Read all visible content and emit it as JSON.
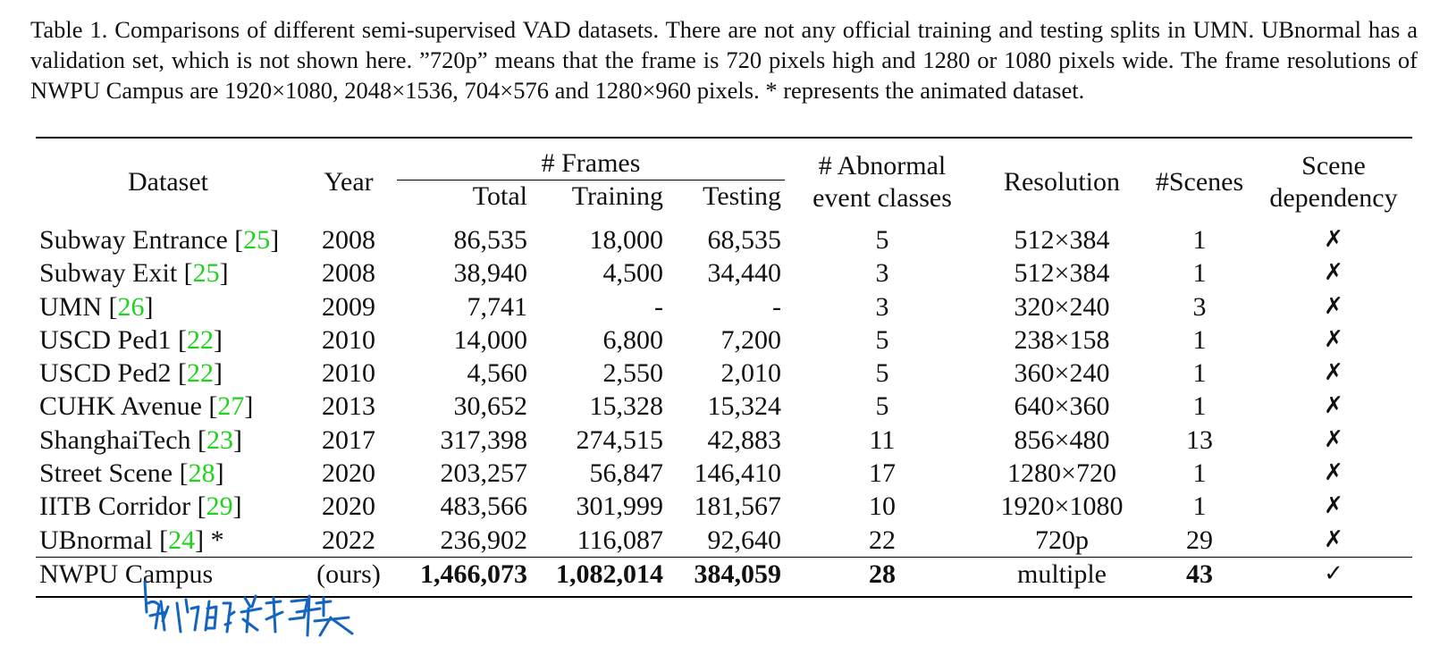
{
  "caption": "Table 1. Comparisons of different semi-supervised VAD datasets. There are not any official training and testing splits in UMN. UBnormal has a validation set, which is not shown here. ”720p” means that the frame is 720 pixels high and 1280 or 1080 pixels wide. The frame resolutions of NWPU Campus are 1920×1080, 2048×1536, 704×576 and 1280×960 pixels. * represents the animated dataset.",
  "headers": {
    "dataset": "Dataset",
    "year": "Year",
    "frames": "# Frames",
    "total": "Total",
    "training": "Training",
    "testing": "Testing",
    "abnormal_line1": "# Abnormal",
    "abnormal_line2": "event classes",
    "resolution": "Resolution",
    "scenes": "#Scenes",
    "scene_dep_line1": "Scene",
    "scene_dep_line2": "dependency"
  },
  "rows": [
    {
      "name": "Subway Entrance ",
      "cite": "25",
      "suffix": "]",
      "year": "2008",
      "total": "86,535",
      "training": "18,000",
      "testing": "68,535",
      "classes": "5",
      "resolution": "512×384",
      "scenes": "1",
      "dep": "✗"
    },
    {
      "name": "Subway Exit ",
      "cite": "25",
      "suffix": "]",
      "year": "2008",
      "total": "38,940",
      "training": "4,500",
      "testing": "34,440",
      "classes": "3",
      "resolution": "512×384",
      "scenes": "1",
      "dep": "✗"
    },
    {
      "name": "UMN ",
      "cite": "26",
      "suffix": "]",
      "year": "2009",
      "total": "7,741",
      "training": "-",
      "testing": "-",
      "classes": "3",
      "resolution": "320×240",
      "scenes": "3",
      "dep": "✗"
    },
    {
      "name": "USCD Ped1 ",
      "cite": "22",
      "suffix": "]",
      "year": "2010",
      "total": "14,000",
      "training": "6,800",
      "testing": "7,200",
      "classes": "5",
      "resolution": "238×158",
      "scenes": "1",
      "dep": "✗"
    },
    {
      "name": "USCD Ped2 ",
      "cite": "22",
      "suffix": "]",
      "year": "2010",
      "total": "4,560",
      "training": "2,550",
      "testing": "2,010",
      "classes": "5",
      "resolution": "360×240",
      "scenes": "1",
      "dep": "✗"
    },
    {
      "name": "CUHK Avenue ",
      "cite": "27",
      "suffix": "]",
      "year": "2013",
      "total": "30,652",
      "training": "15,328",
      "testing": "15,324",
      "classes": "5",
      "resolution": "640×360",
      "scenes": "1",
      "dep": "✗"
    },
    {
      "name": "ShanghaiTech ",
      "cite": "23",
      "suffix": "]",
      "year": "2017",
      "total": "317,398",
      "training": "274,515",
      "testing": "42,883",
      "classes": "11",
      "resolution": "856×480",
      "scenes": "13",
      "dep": "✗"
    },
    {
      "name": "Street Scene ",
      "cite": "28",
      "suffix": "]",
      "year": "2020",
      "total": "203,257",
      "training": "56,847",
      "testing": "146,410",
      "classes": "17",
      "resolution": "1280×720",
      "scenes": "1",
      "dep": "✗"
    },
    {
      "name": "IITB Corridor ",
      "cite": "29",
      "suffix": "]",
      "year": "2020",
      "total": "483,566",
      "training": "301,999",
      "testing": "181,567",
      "classes": "10",
      "resolution": "1920×1080",
      "scenes": "1",
      "dep": "✗"
    },
    {
      "name": "UBnormal ",
      "cite": "24",
      "suffix": "] *",
      "year": "2022",
      "total": "236,902",
      "training": "116,087",
      "testing": "92,640",
      "classes": "22",
      "resolution": "720p",
      "scenes": "29",
      "dep": "✗"
    }
  ],
  "ours": {
    "name": "NWPU Campus",
    "year": "(ours)",
    "total": "1,466,073",
    "training": "1,082,014",
    "testing": "384,059",
    "classes": "28",
    "resolution": "multiple",
    "scenes": "43",
    "dep": "✓"
  },
  "handwritten_note": "我们的数据集",
  "colors": {
    "citation": "#1ed21e",
    "ink": "#1565c0"
  }
}
